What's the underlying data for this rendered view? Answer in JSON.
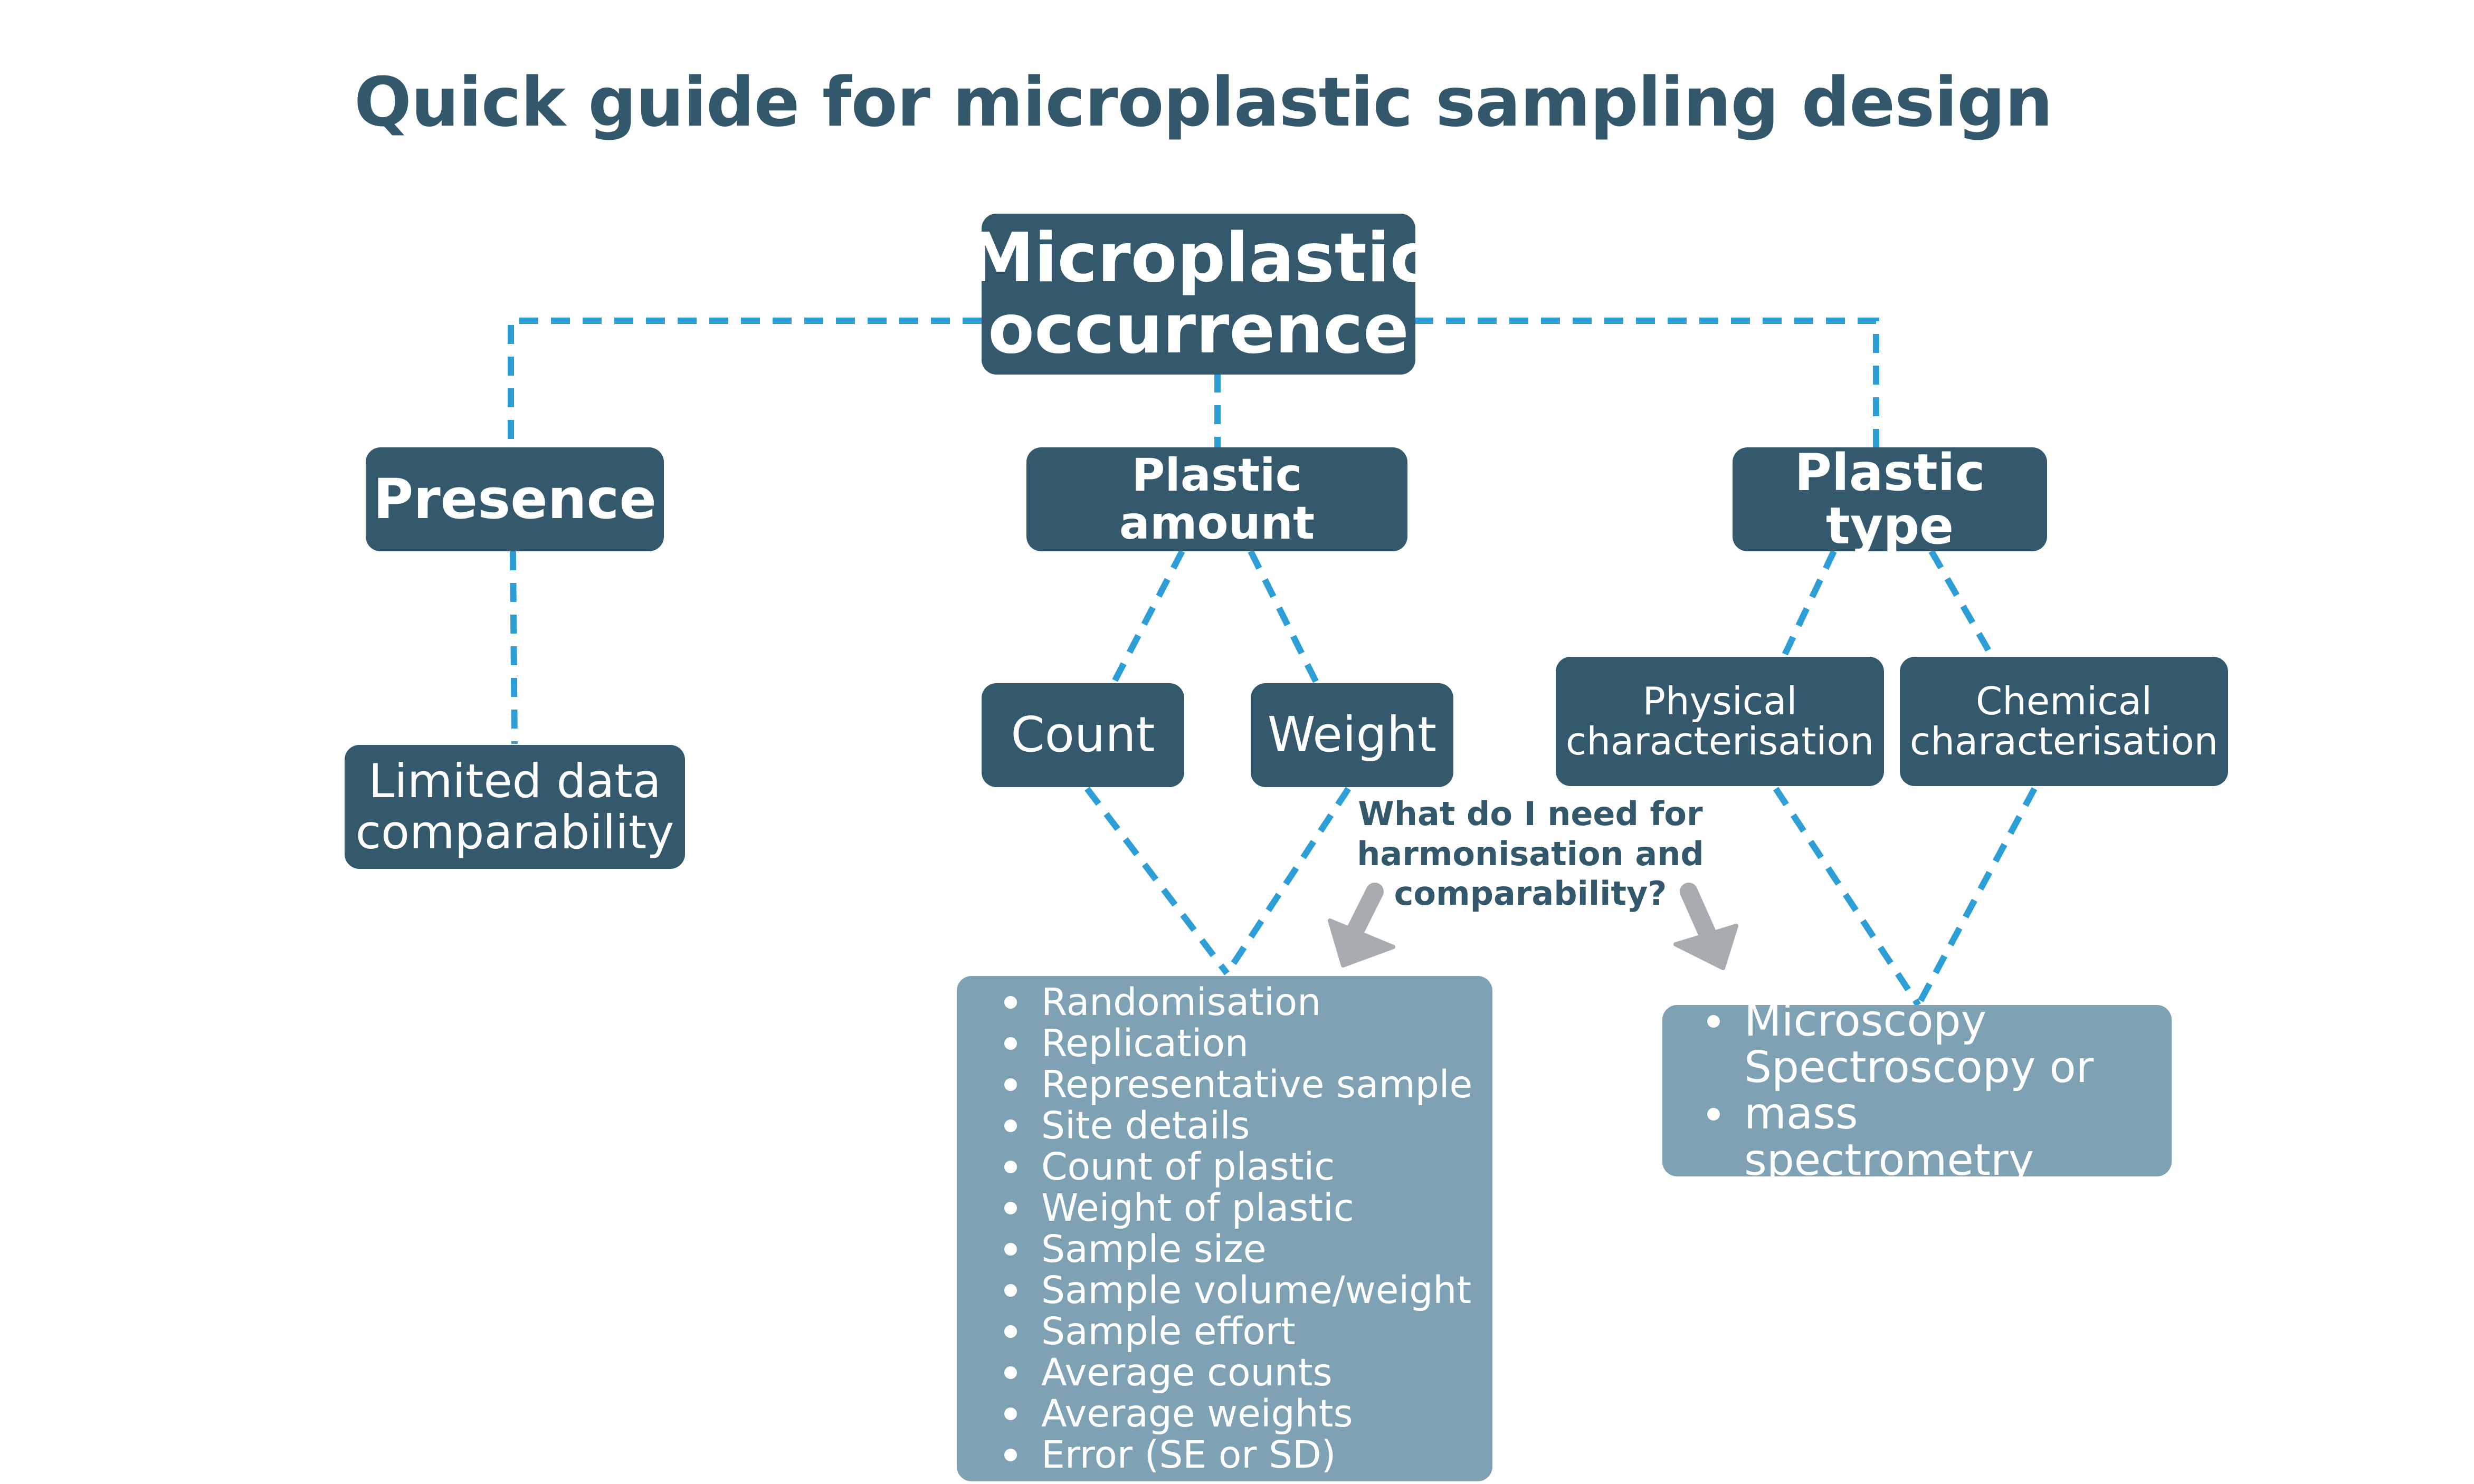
{
  "title": "Quick guide for microplastic sampling design",
  "colors": {
    "title": "#34586b",
    "dark_box": "#35596c",
    "light_box": "#7ea2b4",
    "connector": "#2e9fd6",
    "arrow": "#a8acb1",
    "box_text": "#ffffff"
  },
  "nodes": {
    "root": [
      "Microplastic",
      "occurrence"
    ],
    "presence": "Presence",
    "plastic_amount": "Plastic amount",
    "plastic_type": "Plastic type",
    "limited": [
      "Limited data",
      "comparability"
    ],
    "count": "Count",
    "weight": "Weight",
    "physical": [
      "Physical",
      "characterisation"
    ],
    "chemical": [
      "Chemical",
      "characterisation"
    ]
  },
  "question": [
    "What do I need for",
    "harmonisation and",
    "comparability?"
  ],
  "amount_requirements": [
    "Randomisation",
    "Replication",
    "Representative sample",
    "Site details",
    "Count of plastic",
    "Weight of plastic",
    "Sample size",
    "Sample volume/weight",
    "Sample effort",
    "Average counts",
    "Average weights",
    "Error (SE or SD)"
  ],
  "type_requirements": [
    "Microscopy",
    "Spectroscopy or mass spectrometry"
  ]
}
